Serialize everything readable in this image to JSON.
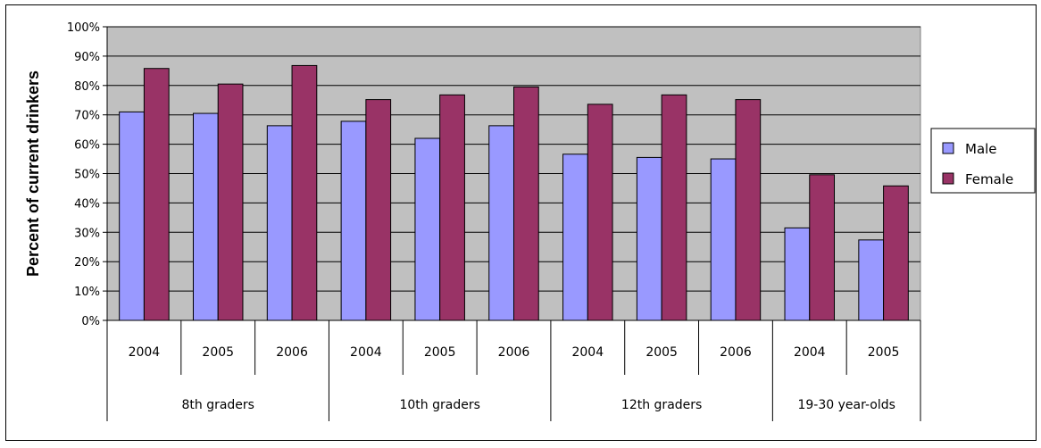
{
  "chart_data": {
    "type": "bar",
    "ylabel": "Percent of current drinkers",
    "ylim": [
      0,
      100
    ],
    "y_ticks": [
      "0%",
      "10%",
      "20%",
      "30%",
      "40%",
      "50%",
      "60%",
      "70%",
      "80%",
      "90%",
      "100%"
    ],
    "grid": true,
    "legend_position": "right",
    "groups": [
      {
        "label": "8th graders",
        "years": [
          "2004",
          "2005",
          "2006"
        ]
      },
      {
        "label": "10th graders",
        "years": [
          "2004",
          "2005",
          "2006"
        ]
      },
      {
        "label": "12th graders",
        "years": [
          "2004",
          "2005",
          "2006"
        ]
      },
      {
        "label": "19-30 year-olds",
        "years": [
          "2004",
          "2005"
        ]
      }
    ],
    "series": [
      {
        "name": "Male",
        "color": "#9999ff",
        "values": [
          71,
          70.5,
          66.3,
          67.8,
          62,
          66.3,
          56.6,
          55.5,
          55,
          31.5,
          27.4
        ]
      },
      {
        "name": "Female",
        "color": "#993366",
        "values": [
          85.8,
          80.5,
          86.8,
          75.2,
          76.8,
          79.5,
          73.6,
          76.8,
          75.2,
          49.6,
          45.8
        ]
      }
    ],
    "plot_background": "#c0c0c0"
  }
}
